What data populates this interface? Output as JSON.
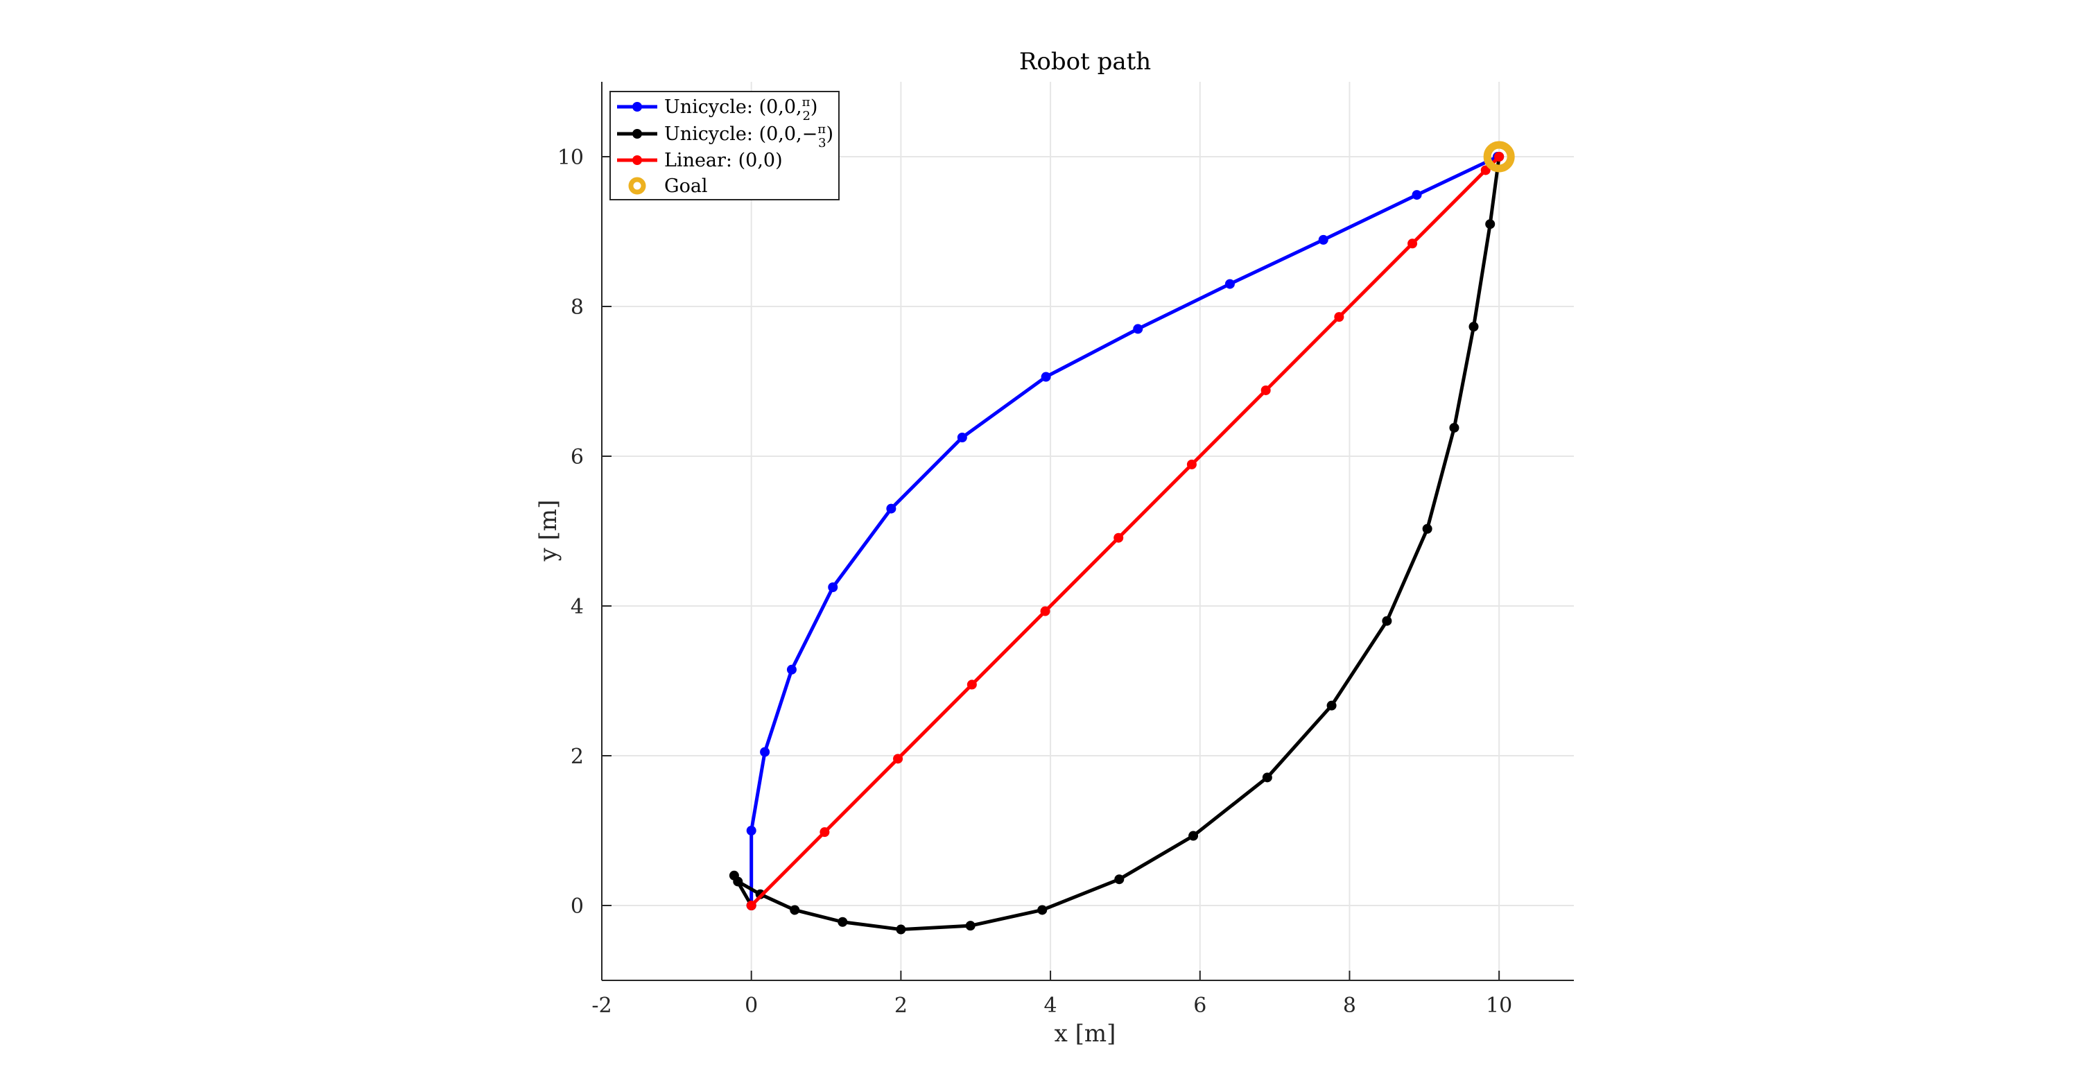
{
  "chart_data": {
    "type": "line",
    "title": "Robot path",
    "xlabel": "x [m]",
    "ylabel": "y [m]",
    "xlim": [
      -2,
      11
    ],
    "ylim": [
      -1,
      11
    ],
    "xticks": [
      "-2",
      "0",
      "2",
      "4",
      "6",
      "8",
      "10"
    ],
    "yticks": [
      "0",
      "2",
      "4",
      "6",
      "8",
      "10"
    ],
    "grid": true,
    "legend_position": "top-left",
    "series": [
      {
        "name": "Unicycle: (0,0,π/2)",
        "legend": {
          "prefix": "Unicycle: (0,0,",
          "frac_num": "π",
          "frac_den": "2",
          "suffix": ")"
        },
        "color": "#0000ff",
        "x": [
          0.0,
          0.0,
          0.18,
          0.54,
          1.09,
          1.87,
          2.82,
          3.94,
          5.17,
          6.4,
          7.65,
          8.9,
          9.98
        ],
        "y": [
          0.0,
          1.0,
          2.05,
          3.15,
          4.25,
          5.3,
          6.25,
          7.06,
          7.7,
          8.3,
          8.89,
          9.49,
          10.0
        ]
      },
      {
        "name": "Unicycle: (0,0,−π/3)",
        "legend": {
          "prefix": "Unicycle: (0,0,−",
          "frac_num": "π",
          "frac_den": "3",
          "suffix": ")"
        },
        "color": "#000000",
        "x": [
          0.0,
          -0.23,
          -0.18,
          0.12,
          0.58,
          1.22,
          2.0,
          2.93,
          3.89,
          4.92,
          5.91,
          6.9,
          7.76,
          8.5,
          9.04,
          9.4,
          9.66,
          9.88,
          10.0
        ],
        "y": [
          0.0,
          0.4,
          0.32,
          0.15,
          -0.06,
          -0.22,
          -0.32,
          -0.27,
          -0.06,
          0.35,
          0.93,
          1.71,
          2.67,
          3.8,
          5.03,
          6.38,
          7.73,
          9.1,
          10.0
        ]
      },
      {
        "name": "Linear: (0,0)",
        "legend": {
          "prefix": "Linear: (0,0)",
          "frac_num": "",
          "frac_den": "",
          "suffix": ""
        },
        "color": "#ff0000",
        "x": [
          0.0,
          0.98,
          1.96,
          2.95,
          3.93,
          4.91,
          5.89,
          6.88,
          7.86,
          8.84,
          9.82,
          10.0
        ],
        "y": [
          0.0,
          0.98,
          1.96,
          2.95,
          3.93,
          4.91,
          5.89,
          6.88,
          7.86,
          8.84,
          9.82,
          10.0
        ]
      }
    ],
    "goal": {
      "name": "Goal",
      "x": 10,
      "y": 10,
      "color": "#edb120"
    }
  }
}
